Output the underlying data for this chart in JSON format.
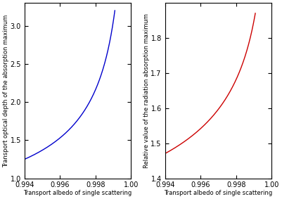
{
  "xlim": [
    0.994,
    1.0
  ],
  "left_ylim": [
    1.0,
    3.3
  ],
  "right_ylim": [
    1.4,
    1.9
  ],
  "left_yticks": [
    1.0,
    1.5,
    2.0,
    2.5,
    3.0
  ],
  "right_yticks": [
    1.4,
    1.5,
    1.6,
    1.7,
    1.8
  ],
  "xticks": [
    0.994,
    0.996,
    0.998,
    1.0
  ],
  "left_ylabel": "Transport optical depth of the absorption maximum",
  "right_ylabel": "Relative value of the radiation absorption maximum",
  "xlabel": "Transport albedo of single scattering",
  "line_color_left": "#0000CC",
  "line_color_right": "#CC0000",
  "bg_color": "#ffffff",
  "linewidth": 1.0,
  "blue_C": 0.0968,
  "red_A": 1.0,
  "red_B": 0.5,
  "omega_max": 0.9991,
  "figsize": [
    4.01,
    2.83
  ],
  "dpi": 100,
  "tick_fontsize": 7,
  "label_fontsize": 6
}
